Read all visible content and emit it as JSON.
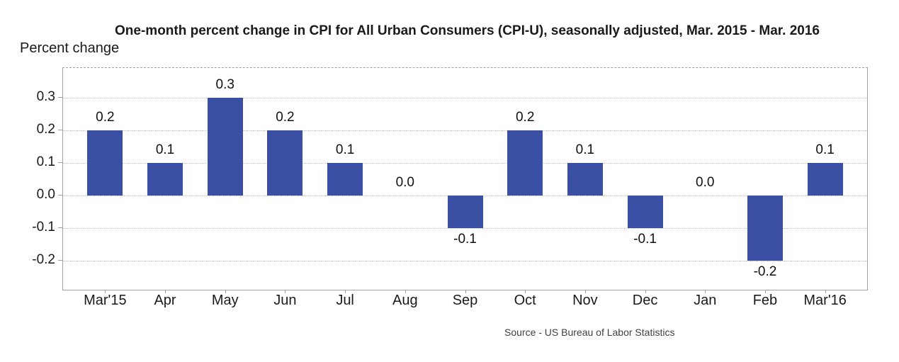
{
  "chart_data": {
    "type": "bar",
    "title": "One-month percent change in CPI for All Urban Consumers (CPI-U), seasonally adjusted, Mar. 2015 - Mar. 2016",
    "y_axis_caption": "Percent change",
    "categories": [
      "Mar'15",
      "Apr",
      "May",
      "Jun",
      "Jul",
      "Aug",
      "Sep",
      "Oct",
      "Nov",
      "Dec",
      "Jan",
      "Feb",
      "Mar'16"
    ],
    "values": [
      0.2,
      0.1,
      0.3,
      0.2,
      0.1,
      0.0,
      -0.1,
      0.2,
      0.1,
      -0.1,
      0.0,
      -0.2,
      0.1
    ],
    "value_labels": [
      "0.2",
      "0.1",
      "0.3",
      "0.2",
      "0.1",
      "0.0",
      "-0.1",
      "0.2",
      "0.1",
      "-0.1",
      "0.0",
      "-0.2",
      "0.1"
    ],
    "yticks": [
      {
        "value": 0.3,
        "label": "0.3"
      },
      {
        "value": 0.2,
        "label": "0.2"
      },
      {
        "value": 0.1,
        "label": "0.1"
      },
      {
        "value": 0.0,
        "label": "0.0"
      },
      {
        "value": -0.1,
        "label": "-0.1"
      },
      {
        "value": -0.2,
        "label": "-0.2"
      }
    ],
    "ylim": [
      -0.289,
      0.391
    ],
    "grid": true,
    "legend": false,
    "source_note": "Source - US Bureau of Labor Statistics",
    "colors": {
      "bar": "#3c52a6",
      "bar_dot": "#2b3f8c",
      "grid": "#bdbdbd",
      "axis_border": "#9aa2a8",
      "text": "#1a1a1a"
    }
  }
}
